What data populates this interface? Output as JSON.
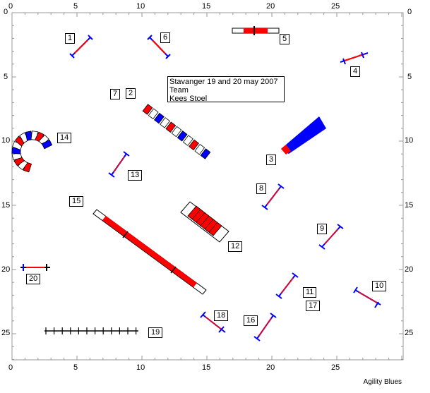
{
  "info": {
    "line1": "Stavanger 19 and 20 may 2007",
    "line2": "Team",
    "line3": "Kees Stoel"
  },
  "footer": "Agility Blues",
  "axis": {
    "ticks": [
      "0",
      "5",
      "10",
      "15",
      "20",
      "25"
    ]
  },
  "obstacle_numbers": [
    "1",
    "2",
    "3",
    "4",
    "5",
    "6",
    "7",
    "8",
    "9",
    "10",
    "11",
    "12",
    "13",
    "14",
    "15",
    "16",
    "17",
    "18",
    "19",
    "20"
  ],
  "colors": {
    "red": "#ff0000",
    "blue": "#0000ff",
    "frame": "#000000"
  }
}
